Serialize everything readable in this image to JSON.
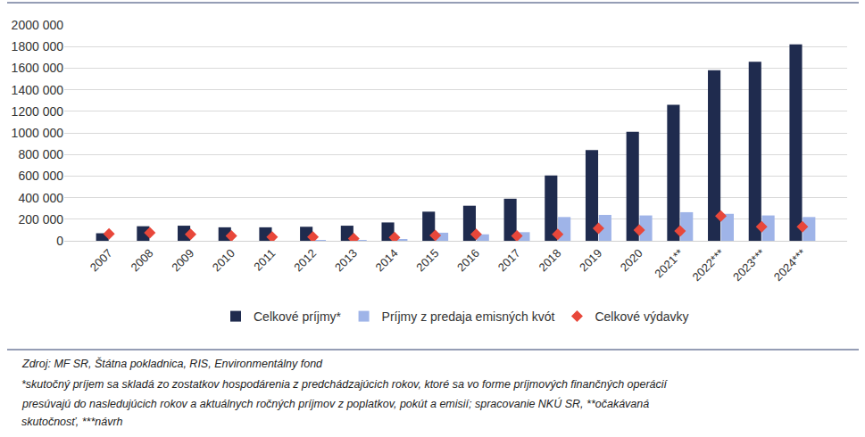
{
  "chart_data": {
    "type": "bar",
    "categories": [
      "2007",
      "2008",
      "2009",
      "2010",
      "2011",
      "2012",
      "2013",
      "2014",
      "2015",
      "2016",
      "2017",
      "2018",
      "2019",
      "2020",
      "2021**",
      "2022***",
      "2023***",
      "2024***"
    ],
    "series": [
      {
        "name": "Celkové príjmy*",
        "type": "bar",
        "color": "#1f2b4e",
        "values": [
          70000,
          135000,
          140000,
          125000,
          125000,
          130000,
          140000,
          170000,
          270000,
          325000,
          390000,
          605000,
          840000,
          1010000,
          1260000,
          1580000,
          1660000,
          1820000
        ]
      },
      {
        "name": "Príjmy z predaja emisných kvót",
        "type": "bar",
        "color": "#9fb4e8",
        "values": [
          0,
          0,
          0,
          0,
          0,
          5000,
          8000,
          15000,
          75000,
          60000,
          80000,
          220000,
          240000,
          235000,
          265000,
          250000,
          235000,
          220000
        ]
      },
      {
        "name": "Celkové výdavky",
        "type": "scatter",
        "marker": "diamond",
        "color": "#e8473a",
        "values": [
          65000,
          75000,
          60000,
          45000,
          35000,
          35000,
          20000,
          30000,
          50000,
          60000,
          45000,
          60000,
          115000,
          100000,
          90000,
          230000,
          130000,
          130000
        ]
      }
    ],
    "ylim": [
      0,
      2000000
    ],
    "yticks": [
      0,
      {
        "value": 200000,
        "label": "200 000"
      },
      {
        "value": 400000,
        "label": "400 000"
      },
      {
        "value": 600000,
        "label": "600 000"
      },
      {
        "value": 800000,
        "label": "800 000"
      },
      {
        "value": 1000000,
        "label": "1000 000"
      },
      {
        "value": 1200000,
        "label": "1200 000"
      },
      {
        "value": 1400000,
        "label": "1400 000"
      },
      {
        "value": 1600000,
        "label": "1600 000"
      },
      {
        "value": 1800000,
        "label": "1800 000"
      },
      {
        "value": 2000000,
        "label": "2000 000"
      }
    ],
    "grid": true,
    "legend": "bottom",
    "annotations": [
      "Zdroj: MF SR, Štátna pokladnica, RIS, Environmentálny fond",
      "*skutočný príjem sa skladá zo zostatkov hospodárenia z predchádzajúcich rokov, ktoré sa vo forme príjmových finančných operácií",
      "presúvajú do nasledujúcich rokov a aktuálnych ročných príjmov z poplatkov, pokút a emisií; spracovanie NKÚ SR, **očakávaná",
      "skutočnosť, ***návrh"
    ]
  }
}
